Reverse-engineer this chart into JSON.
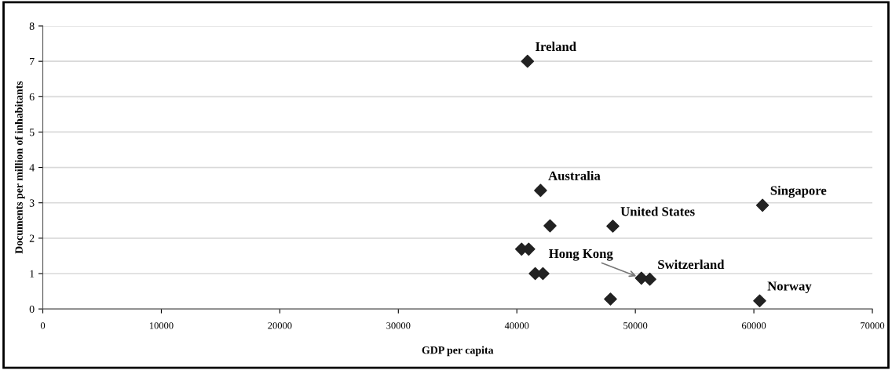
{
  "chart_data": {
    "type": "scatter",
    "xlabel": "GDP per capita",
    "ylabel": "Documents per million of inhabitants",
    "x": [
      40900,
      42000,
      42800,
      40400,
      41000,
      41550,
      42200,
      47900,
      48100,
      60730,
      50510,
      51220,
      60490
    ],
    "series": [
      {
        "color": "#222222",
        "values": [
          7.0,
          3.35,
          2.35,
          1.69,
          1.69,
          1.0,
          1.0,
          0.28,
          2.34,
          2.93,
          0.87,
          0.84,
          0.23
        ]
      }
    ],
    "marker": "diamond",
    "grid": "y",
    "xlim": [
      0,
      70000
    ],
    "xticks": [
      0,
      10000,
      20000,
      30000,
      40000,
      50000,
      60000,
      70000
    ],
    "ylim": [
      0,
      8
    ],
    "yticks": [
      0,
      1,
      2,
      3,
      4,
      5,
      6,
      7,
      8
    ],
    "annotations": [
      {
        "text": "Ireland",
        "x": 40900,
        "y": 7.0
      },
      {
        "text": "Australia",
        "x": 42000,
        "y": 3.35
      },
      {
        "text": "Singapore",
        "x": 60730,
        "y": 2.93
      },
      {
        "text": "United States",
        "x": 48100,
        "y": 2.34
      },
      {
        "text": "Hong Kong",
        "x": 50510,
        "y": 0.87
      },
      {
        "text": "Switzerland",
        "x": 51220,
        "y": 0.84
      },
      {
        "text": "Norway",
        "x": 60490,
        "y": 0.23
      }
    ]
  }
}
